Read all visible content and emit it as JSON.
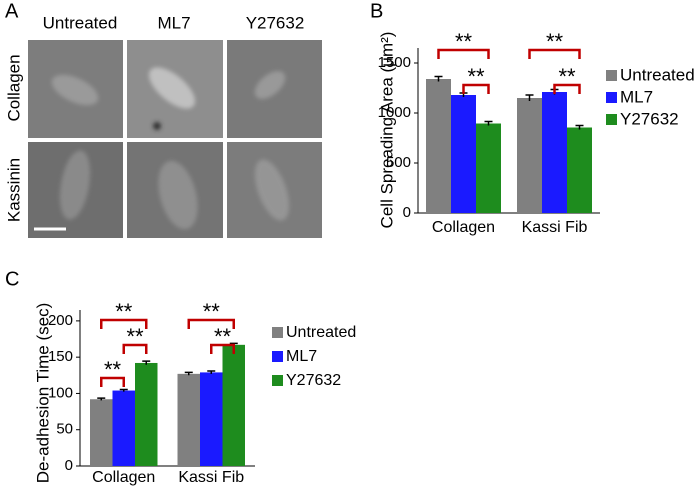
{
  "panel_a": {
    "label": "A",
    "columns": [
      "Untreated",
      "ML7",
      "Y27632"
    ],
    "rows": [
      "Collagen",
      "Kassinin"
    ]
  },
  "chart_data": [
    {
      "type": "bar",
      "panel_label": "B",
      "y_label": "Cell Spreading Area (μm²)",
      "categories": [
        "Collagen",
        "Kassi Fib"
      ],
      "series": [
        {
          "name": "Untreated",
          "color": "#808080",
          "values": [
            1340,
            1150
          ],
          "errors": [
            25,
            30
          ]
        },
        {
          "name": "ML7",
          "color": "#1a1aff",
          "values": [
            1180,
            1210
          ],
          "errors": [
            20,
            25
          ]
        },
        {
          "name": "Y27632",
          "color": "#1e8c1e",
          "values": [
            895,
            855
          ],
          "errors": [
            20,
            20
          ]
        }
      ],
      "ylim": [
        0,
        1650
      ],
      "yticks": [
        0,
        500,
        1000,
        1500
      ],
      "annotations": [
        "**",
        "**",
        "**",
        "**"
      ],
      "annotation_color": "#c00000"
    },
    {
      "type": "bar",
      "panel_label": "C",
      "y_label": "De-adhesion Time (sec)",
      "categories": [
        "Collagen",
        "Kassi Fib"
      ],
      "series": [
        {
          "name": "Untreated",
          "color": "#808080",
          "values": [
            92,
            127
          ],
          "errors": [
            1.5,
            2
          ]
        },
        {
          "name": "ML7",
          "color": "#1a1aff",
          "values": [
            104,
            129
          ],
          "errors": [
            1.5,
            2
          ]
        },
        {
          "name": "Y27632",
          "color": "#1e8c1e",
          "values": [
            142,
            167
          ],
          "errors": [
            2.5,
            2
          ]
        }
      ],
      "ylim": [
        0,
        215
      ],
      "yticks": [
        0,
        50,
        100,
        150,
        200
      ],
      "annotations": [
        "**",
        "**",
        "**",
        "**",
        "**"
      ],
      "annotation_color": "#c00000"
    }
  ]
}
